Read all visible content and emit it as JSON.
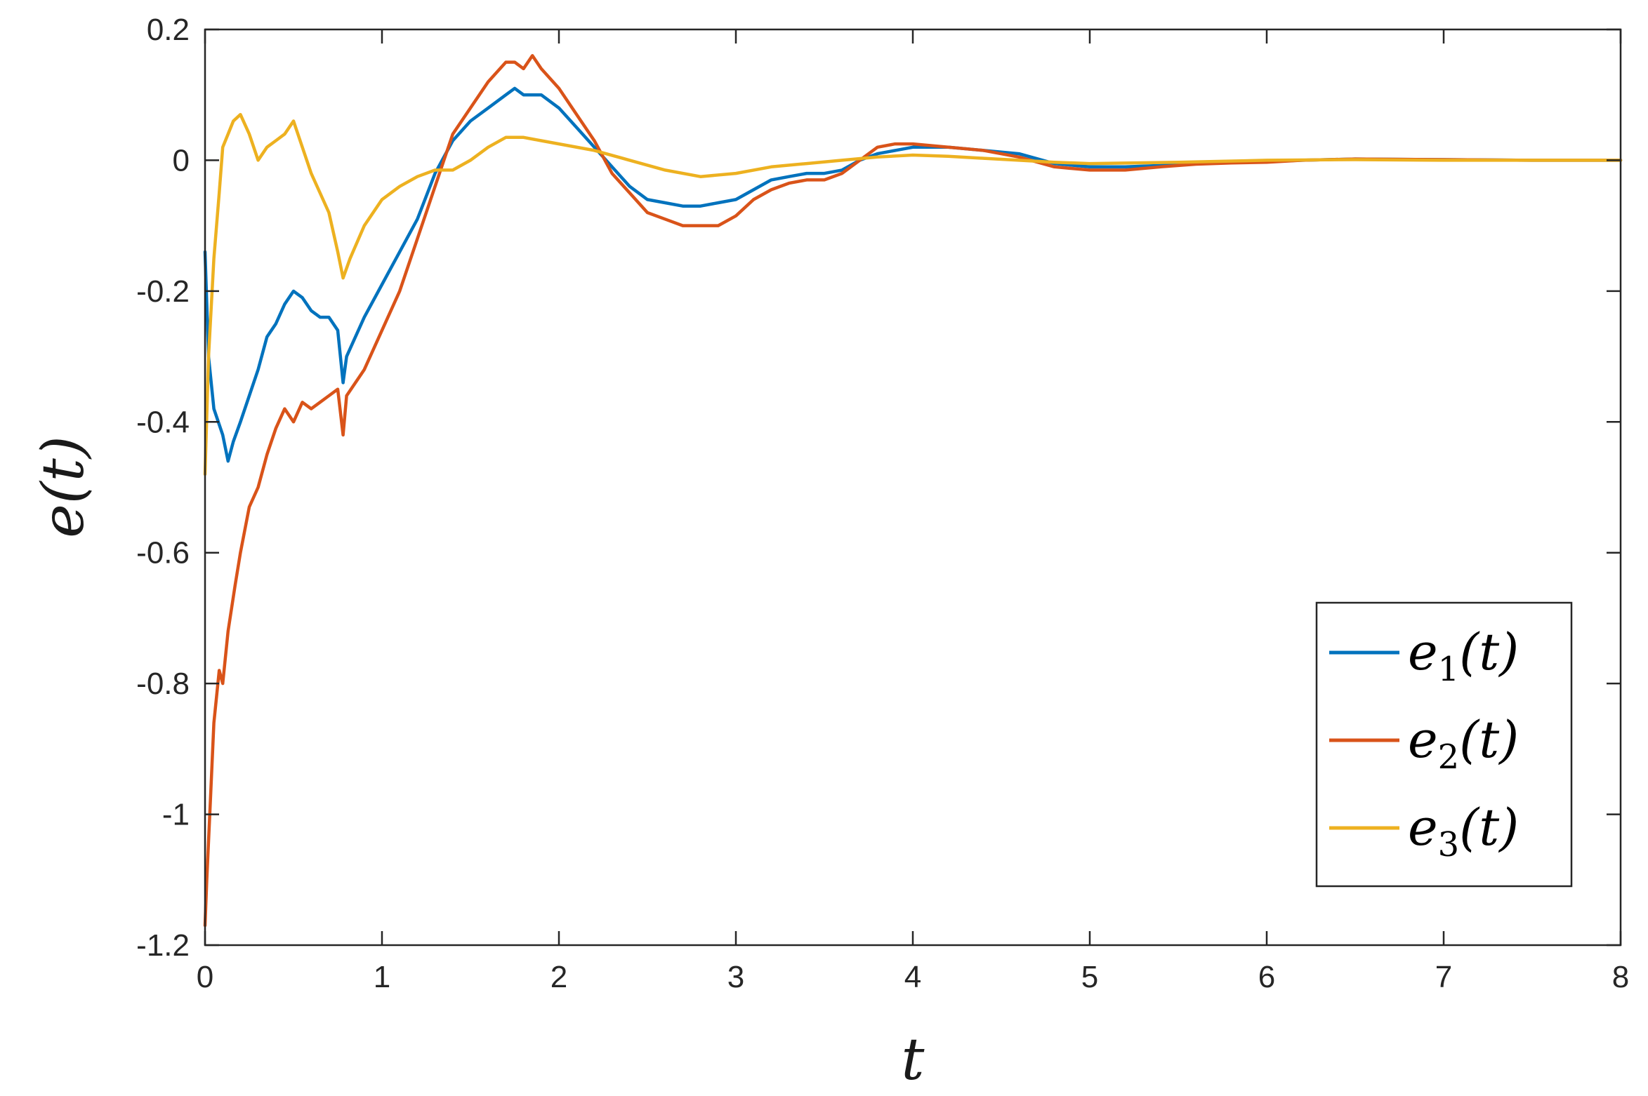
{
  "chart_data": {
    "type": "line",
    "xlabel": "t",
    "ylabel": "e(t)",
    "xlim": [
      0,
      8
    ],
    "ylim": [
      -1.2,
      0.2
    ],
    "xticks": [
      "0",
      "1",
      "2",
      "3",
      "4",
      "5",
      "6",
      "7",
      "8"
    ],
    "yticks": [
      "0.2",
      "0",
      "-0.2",
      "-0.4",
      "-0.6",
      "-0.8",
      "-1",
      "-1.2"
    ],
    "grid": false,
    "legend_position": "bottom-right",
    "series": [
      {
        "name": "e",
        "name_sub": "1",
        "name_suffix": "(t)",
        "color": "#0072BD",
        "x": [
          0,
          0.02,
          0.05,
          0.1,
          0.13,
          0.16,
          0.2,
          0.25,
          0.3,
          0.35,
          0.4,
          0.45,
          0.5,
          0.55,
          0.6,
          0.65,
          0.7,
          0.75,
          0.78,
          0.8,
          0.85,
          0.9,
          1.0,
          1.1,
          1.2,
          1.3,
          1.4,
          1.5,
          1.6,
          1.7,
          1.75,
          1.8,
          1.9,
          2.0,
          2.1,
          2.2,
          2.3,
          2.4,
          2.5,
          2.6,
          2.7,
          2.8,
          2.9,
          3.0,
          3.1,
          3.2,
          3.3,
          3.4,
          3.5,
          3.6,
          3.7,
          3.8,
          3.9,
          4.0,
          4.2,
          4.4,
          4.6,
          4.8,
          5.0,
          5.2,
          5.4,
          5.6,
          5.8,
          6.0,
          6.2,
          6.5,
          7.0,
          7.5,
          8.0
        ],
        "y": [
          -0.14,
          -0.3,
          -0.38,
          -0.42,
          -0.46,
          -0.43,
          -0.4,
          -0.36,
          -0.32,
          -0.27,
          -0.25,
          -0.22,
          -0.2,
          -0.21,
          -0.23,
          -0.24,
          -0.24,
          -0.26,
          -0.34,
          -0.3,
          -0.27,
          -0.24,
          -0.19,
          -0.14,
          -0.09,
          -0.02,
          0.03,
          0.06,
          0.08,
          0.1,
          0.11,
          0.1,
          0.1,
          0.08,
          0.05,
          0.02,
          -0.01,
          -0.04,
          -0.06,
          -0.065,
          -0.07,
          -0.07,
          -0.065,
          -0.06,
          -0.045,
          -0.03,
          -0.025,
          -0.02,
          -0.02,
          -0.015,
          0.0,
          0.01,
          0.015,
          0.02,
          0.02,
          0.015,
          0.01,
          -0.005,
          -0.01,
          -0.01,
          -0.008,
          -0.005,
          -0.003,
          -0.002,
          0.0,
          0.002,
          0.001,
          0.0,
          0.0
        ]
      },
      {
        "name": "e",
        "name_sub": "2",
        "name_suffix": "(t)",
        "color": "#D95319",
        "x": [
          0,
          0.01,
          0.03,
          0.05,
          0.08,
          0.1,
          0.13,
          0.17,
          0.2,
          0.25,
          0.3,
          0.35,
          0.4,
          0.45,
          0.5,
          0.55,
          0.6,
          0.65,
          0.7,
          0.75,
          0.78,
          0.8,
          0.85,
          0.9,
          1.0,
          1.1,
          1.2,
          1.3,
          1.4,
          1.5,
          1.6,
          1.7,
          1.75,
          1.8,
          1.85,
          1.9,
          2.0,
          2.1,
          2.2,
          2.3,
          2.4,
          2.5,
          2.6,
          2.7,
          2.8,
          2.9,
          3.0,
          3.1,
          3.2,
          3.3,
          3.4,
          3.5,
          3.6,
          3.7,
          3.8,
          3.9,
          4.0,
          4.2,
          4.4,
          4.6,
          4.8,
          5.0,
          5.2,
          5.4,
          5.6,
          5.8,
          6.0,
          6.2,
          6.5,
          7.0,
          7.5,
          8.0
        ],
        "y": [
          -1.17,
          -1.1,
          -0.98,
          -0.86,
          -0.78,
          -0.8,
          -0.72,
          -0.65,
          -0.6,
          -0.53,
          -0.5,
          -0.45,
          -0.41,
          -0.38,
          -0.4,
          -0.37,
          -0.38,
          -0.37,
          -0.36,
          -0.35,
          -0.42,
          -0.36,
          -0.34,
          -0.32,
          -0.26,
          -0.2,
          -0.12,
          -0.04,
          0.04,
          0.08,
          0.12,
          0.15,
          0.15,
          0.14,
          0.16,
          0.14,
          0.11,
          0.07,
          0.03,
          -0.02,
          -0.05,
          -0.08,
          -0.09,
          -0.1,
          -0.1,
          -0.1,
          -0.085,
          -0.06,
          -0.045,
          -0.035,
          -0.03,
          -0.03,
          -0.02,
          0.0,
          0.02,
          0.025,
          0.025,
          0.02,
          0.015,
          0.005,
          -0.01,
          -0.015,
          -0.015,
          -0.01,
          -0.006,
          -0.004,
          -0.003,
          0.0,
          0.002,
          0.001,
          0.0,
          0.0
        ]
      },
      {
        "name": "e",
        "name_sub": "3",
        "name_suffix": "(t)",
        "color": "#EDB120",
        "x": [
          0,
          0.02,
          0.05,
          0.08,
          0.1,
          0.13,
          0.16,
          0.2,
          0.25,
          0.3,
          0.35,
          0.4,
          0.45,
          0.5,
          0.55,
          0.6,
          0.65,
          0.7,
          0.75,
          0.78,
          0.82,
          0.9,
          1.0,
          1.1,
          1.2,
          1.3,
          1.4,
          1.5,
          1.6,
          1.7,
          1.8,
          1.9,
          2.0,
          2.2,
          2.4,
          2.6,
          2.8,
          3.0,
          3.2,
          3.4,
          3.6,
          3.8,
          4.0,
          4.2,
          4.4,
          4.6,
          4.8,
          5.0,
          5.5,
          6.0,
          6.5,
          7.0,
          7.5,
          8.0
        ],
        "y": [
          -0.48,
          -0.3,
          -0.15,
          -0.05,
          0.02,
          0.04,
          0.06,
          0.07,
          0.04,
          0.0,
          0.02,
          0.03,
          0.04,
          0.06,
          0.02,
          -0.02,
          -0.05,
          -0.08,
          -0.14,
          -0.18,
          -0.15,
          -0.1,
          -0.06,
          -0.04,
          -0.025,
          -0.015,
          -0.015,
          0.0,
          0.02,
          0.035,
          0.035,
          0.03,
          0.025,
          0.015,
          0.0,
          -0.015,
          -0.025,
          -0.02,
          -0.01,
          -0.005,
          0.0,
          0.005,
          0.008,
          0.006,
          0.003,
          0.0,
          -0.003,
          -0.005,
          -0.003,
          0.0,
          0.001,
          0.0,
          0.0,
          0.0
        ]
      }
    ]
  }
}
